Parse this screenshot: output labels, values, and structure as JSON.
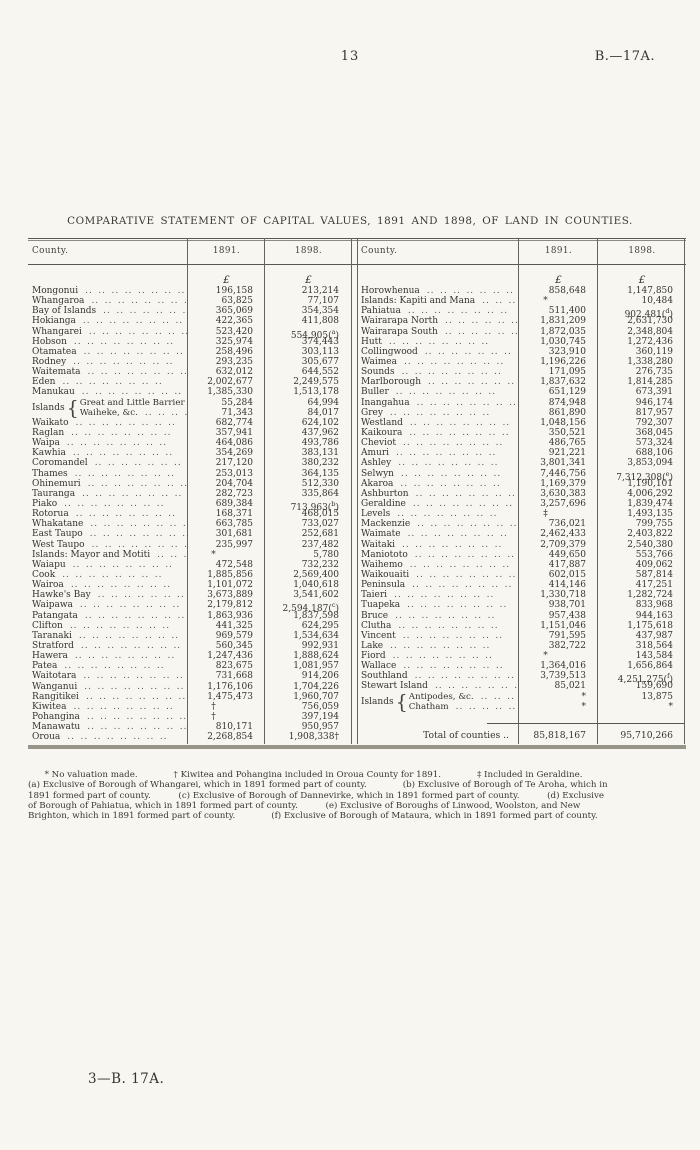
{
  "page": {
    "number": "13",
    "doc_ref": "B.—17A.",
    "footer": "3—B. 17A."
  },
  "colors": {
    "paper": "#f7f6f1",
    "ink": "#37342e",
    "rule": "#5a574f"
  },
  "table": {
    "title": "COMPARATIVE STATEMENT OF CAPITAL VALUES, 1891 AND 1898, OF LAND IN COUNTIES.",
    "headers": {
      "county": "County.",
      "y1891": "1891.",
      "y1898": "1898."
    },
    "currency": "£",
    "left_rows": [
      {
        "n": "Mongonui",
        "a": "196,158",
        "b": "213,214"
      },
      {
        "n": "Whangaroa",
        "a": "63,825",
        "b": "77,107"
      },
      {
        "n": "Bay of Islands",
        "a": "365,069",
        "b": "354,354"
      },
      {
        "n": "Hokianga",
        "a": "422,365",
        "b": "411,808"
      },
      {
        "n": "Whangarei",
        "a": "523,420",
        "b": "554,905(a)"
      },
      {
        "n": "Hobson",
        "a": "325,974",
        "b": "374,443"
      },
      {
        "n": "Otamatea",
        "a": "258,496",
        "b": "303,113"
      },
      {
        "n": "Rodney",
        "a": "293,235",
        "b": "305,677"
      },
      {
        "n": "Waitemata",
        "a": "632,012",
        "b": "644,552"
      },
      {
        "n": "Eden",
        "a": "2,002,677",
        "b": "2,249,575"
      },
      {
        "n": "Manukau",
        "a": "1,385,330",
        "b": "1,513,178"
      },
      {
        "label": "Islands",
        "items": [
          {
            "n": "Great and Little Barrier",
            "a": "55,284",
            "b": "64,994"
          },
          {
            "n": "Waiheke, &c.",
            "a": "71,343",
            "b": "84,017"
          }
        ]
      },
      {
        "n": "Waikato",
        "a": "682,774",
        "b": "624,102"
      },
      {
        "n": "Raglan",
        "a": "357,941",
        "b": "437,962"
      },
      {
        "n": "Waipa",
        "a": "464,086",
        "b": "493,786"
      },
      {
        "n": "Kawhia",
        "a": "354,269",
        "b": "383,131"
      },
      {
        "n": "Coromandel",
        "a": "217,120",
        "b": "380,232"
      },
      {
        "n": "Thames",
        "a": "253,013",
        "b": "364,135"
      },
      {
        "n": "Ohinemuri",
        "a": "204,704",
        "b": "512,330"
      },
      {
        "n": "Tauranga",
        "a": "282,723",
        "b": "335,864"
      },
      {
        "n": "Piako",
        "a": "689,384",
        "b": "713,963(b)"
      },
      {
        "n": "Rotorua",
        "a": "168,371",
        "b": "468,015"
      },
      {
        "n": "Whakatane",
        "a": "663,785",
        "b": "733,027"
      },
      {
        "n": "East Taupo",
        "a": "301,681",
        "b": "252,681"
      },
      {
        "n": "West Taupo",
        "a": "235,997",
        "b": "237,482"
      },
      {
        "n": "Islands: Mayor and Motiti",
        "a": "*",
        "b": "5,780"
      },
      {
        "n": "Waiapu",
        "a": "472,548",
        "b": "732,232"
      },
      {
        "n": "Cook",
        "a": "1,885,856",
        "b": "2,569,400"
      },
      {
        "n": "Wairoa",
        "a": "1,101,072",
        "b": "1,040,618"
      },
      {
        "n": "Hawke's Bay",
        "a": "3,673,889",
        "b": "3,541,602"
      },
      {
        "n": "Waipawa",
        "a": "2,179,812",
        "b": "2,594,187(c)"
      },
      {
        "n": "Patangata",
        "a": "1,863,936",
        "b": "1,837,598"
      },
      {
        "n": "Clifton",
        "a": "441,325",
        "b": "624,295"
      },
      {
        "n": "Taranaki",
        "a": "969,579",
        "b": "1,534,634"
      },
      {
        "n": "Stratford",
        "a": "560,345",
        "b": "992,931"
      },
      {
        "n": "Hawera",
        "a": "1,247,436",
        "b": "1,888,624"
      },
      {
        "n": "Patea",
        "a": "823,675",
        "b": "1,081,957"
      },
      {
        "n": "Waitotara",
        "a": "731,668",
        "b": "914,206"
      },
      {
        "n": "Wanganui",
        "a": "1,176,106",
        "b": "1,704,226"
      },
      {
        "n": "Rangitikei",
        "a": "1,475,473",
        "b": "1,960,707"
      },
      {
        "n": "Kiwitea",
        "a": "†",
        "b": "756,059"
      },
      {
        "n": "Pohangina",
        "a": "†",
        "b": "397,194"
      },
      {
        "n": "Manawatu",
        "a": "810,171",
        "b": "950,957"
      },
      {
        "n": "Oroua",
        "a": "2,268,854",
        "b": "1,908,338†"
      }
    ],
    "right_rows": [
      {
        "n": "Horowhenua",
        "a": "858,648",
        "b": "1,147,850"
      },
      {
        "n": "Islands: Kapiti and Mana",
        "a": "*",
        "b": "10,484"
      },
      {
        "n": "Pahiatua",
        "a": "511,400",
        "b": "902,481(d)"
      },
      {
        "n": "Wairarapa North",
        "a": "1,831,209",
        "b": "2,631,730"
      },
      {
        "n": "Wairarapa South",
        "a": "1,872,035",
        "b": "2,348,804"
      },
      {
        "n": "Hutt",
        "a": "1,030,745",
        "b": "1,272,436"
      },
      {
        "n": "Collingwood",
        "a": "323,910",
        "b": "360,119"
      },
      {
        "n": "Waimea",
        "a": "1,196,226",
        "b": "1,338,280"
      },
      {
        "n": "Sounds",
        "a": "171,095",
        "b": "276,735"
      },
      {
        "n": "Marlborough",
        "a": "1,837,632",
        "b": "1,814,285"
      },
      {
        "n": "Buller",
        "a": "651,129",
        "b": "673,391"
      },
      {
        "n": "Inangahua",
        "a": "874,948",
        "b": "946,174"
      },
      {
        "n": "Grey",
        "a": "861,890",
        "b": "817,957"
      },
      {
        "n": "Westland",
        "a": "1,048,156",
        "b": "792,307"
      },
      {
        "n": "Kaikoura",
        "a": "350,521",
        "b": "368,045"
      },
      {
        "n": "Cheviot",
        "a": "486,765",
        "b": "573,324"
      },
      {
        "n": "Amuri",
        "a": "921,221",
        "b": "688,106"
      },
      {
        "n": "Ashley",
        "a": "3,801,341",
        "b": "3,853,094"
      },
      {
        "n": "Selwyn",
        "a": "7,446,756",
        "b": "7,312,308(e)"
      },
      {
        "n": "Akaroa",
        "a": "1,169,379",
        "b": "1,190,101"
      },
      {
        "n": "Ashburton",
        "a": "3,630,383",
        "b": "4,006,292"
      },
      {
        "n": "Geraldine",
        "a": "3,257,696",
        "b": "1,839,474"
      },
      {
        "n": "Levels",
        "a": "‡",
        "b": "1,493,135"
      },
      {
        "n": "Mackenzie",
        "a": "736,021",
        "b": "799,755"
      },
      {
        "n": "Waimate",
        "a": "2,462,433",
        "b": "2,403,822"
      },
      {
        "n": "Waitaki",
        "a": "2,709,379",
        "b": "2,540,380"
      },
      {
        "n": "Maniototo",
        "a": "449,650",
        "b": "553,766"
      },
      {
        "n": "Waihemo",
        "a": "417,887",
        "b": "409,062"
      },
      {
        "n": "Waikouaiti",
        "a": "602,015",
        "b": "587,814"
      },
      {
        "n": "Peninsula",
        "a": "414,146",
        "b": "417,251"
      },
      {
        "n": "Taieri",
        "a": "1,330,718",
        "b": "1,282,724"
      },
      {
        "n": "Tuapeka",
        "a": "938,701",
        "b": "833,968"
      },
      {
        "n": "Bruce",
        "a": "957,438",
        "b": "944,163"
      },
      {
        "n": "Clutha",
        "a": "1,151,046",
        "b": "1,175,618"
      },
      {
        "n": "Vincent",
        "a": "791,595",
        "b": "437,987"
      },
      {
        "n": "Lake",
        "a": "382,722",
        "b": "318,564"
      },
      {
        "n": "Fiord",
        "a": "*",
        "b": "143,584"
      },
      {
        "n": "Wallace",
        "a": "1,364,016",
        "b": "1,656,864"
      },
      {
        "n": "Southland",
        "a": "3,739,513",
        "b": "4,251,275(f)"
      },
      {
        "n": "Stewart Island",
        "a": "85,021",
        "b": "159,690"
      },
      {
        "label": "Islands",
        "items": [
          {
            "n": "Antipodes, &c.",
            "a": "*",
            "b": "13,875"
          },
          {
            "n": "Chatham",
            "a": "*",
            "b": "*"
          }
        ]
      }
    ],
    "total": {
      "label": "Total of counties ..",
      "v1891": "85,818,167",
      "v1898": "95,710,266"
    }
  },
  "footnotes": {
    "lines": [
      "      * No valuation made.             † Kiwitea and Pohangina included in Oroua County for 1891.             ‡ Included in Geraldine.",
      "(a) Exclusive of Borough of Whangarei, which in 1891 formed part of county.             (b) Exclusive of Borough of Te Aroha, which in",
      "1891 formed part of county.          (c) Exclusive of Borough of Dannevirke, which in 1891 formed part of county.          (d) Exclusive",
      "of Borough of Pahiatua, which in 1891 formed part of county.          (e) Exclusive of Boroughs of Linwood, Woolston, and New",
      "Brighton, which in 1891 formed part of county.             (f) Exclusive of Borough of Mataura, which in 1891 formed part of county."
    ]
  }
}
